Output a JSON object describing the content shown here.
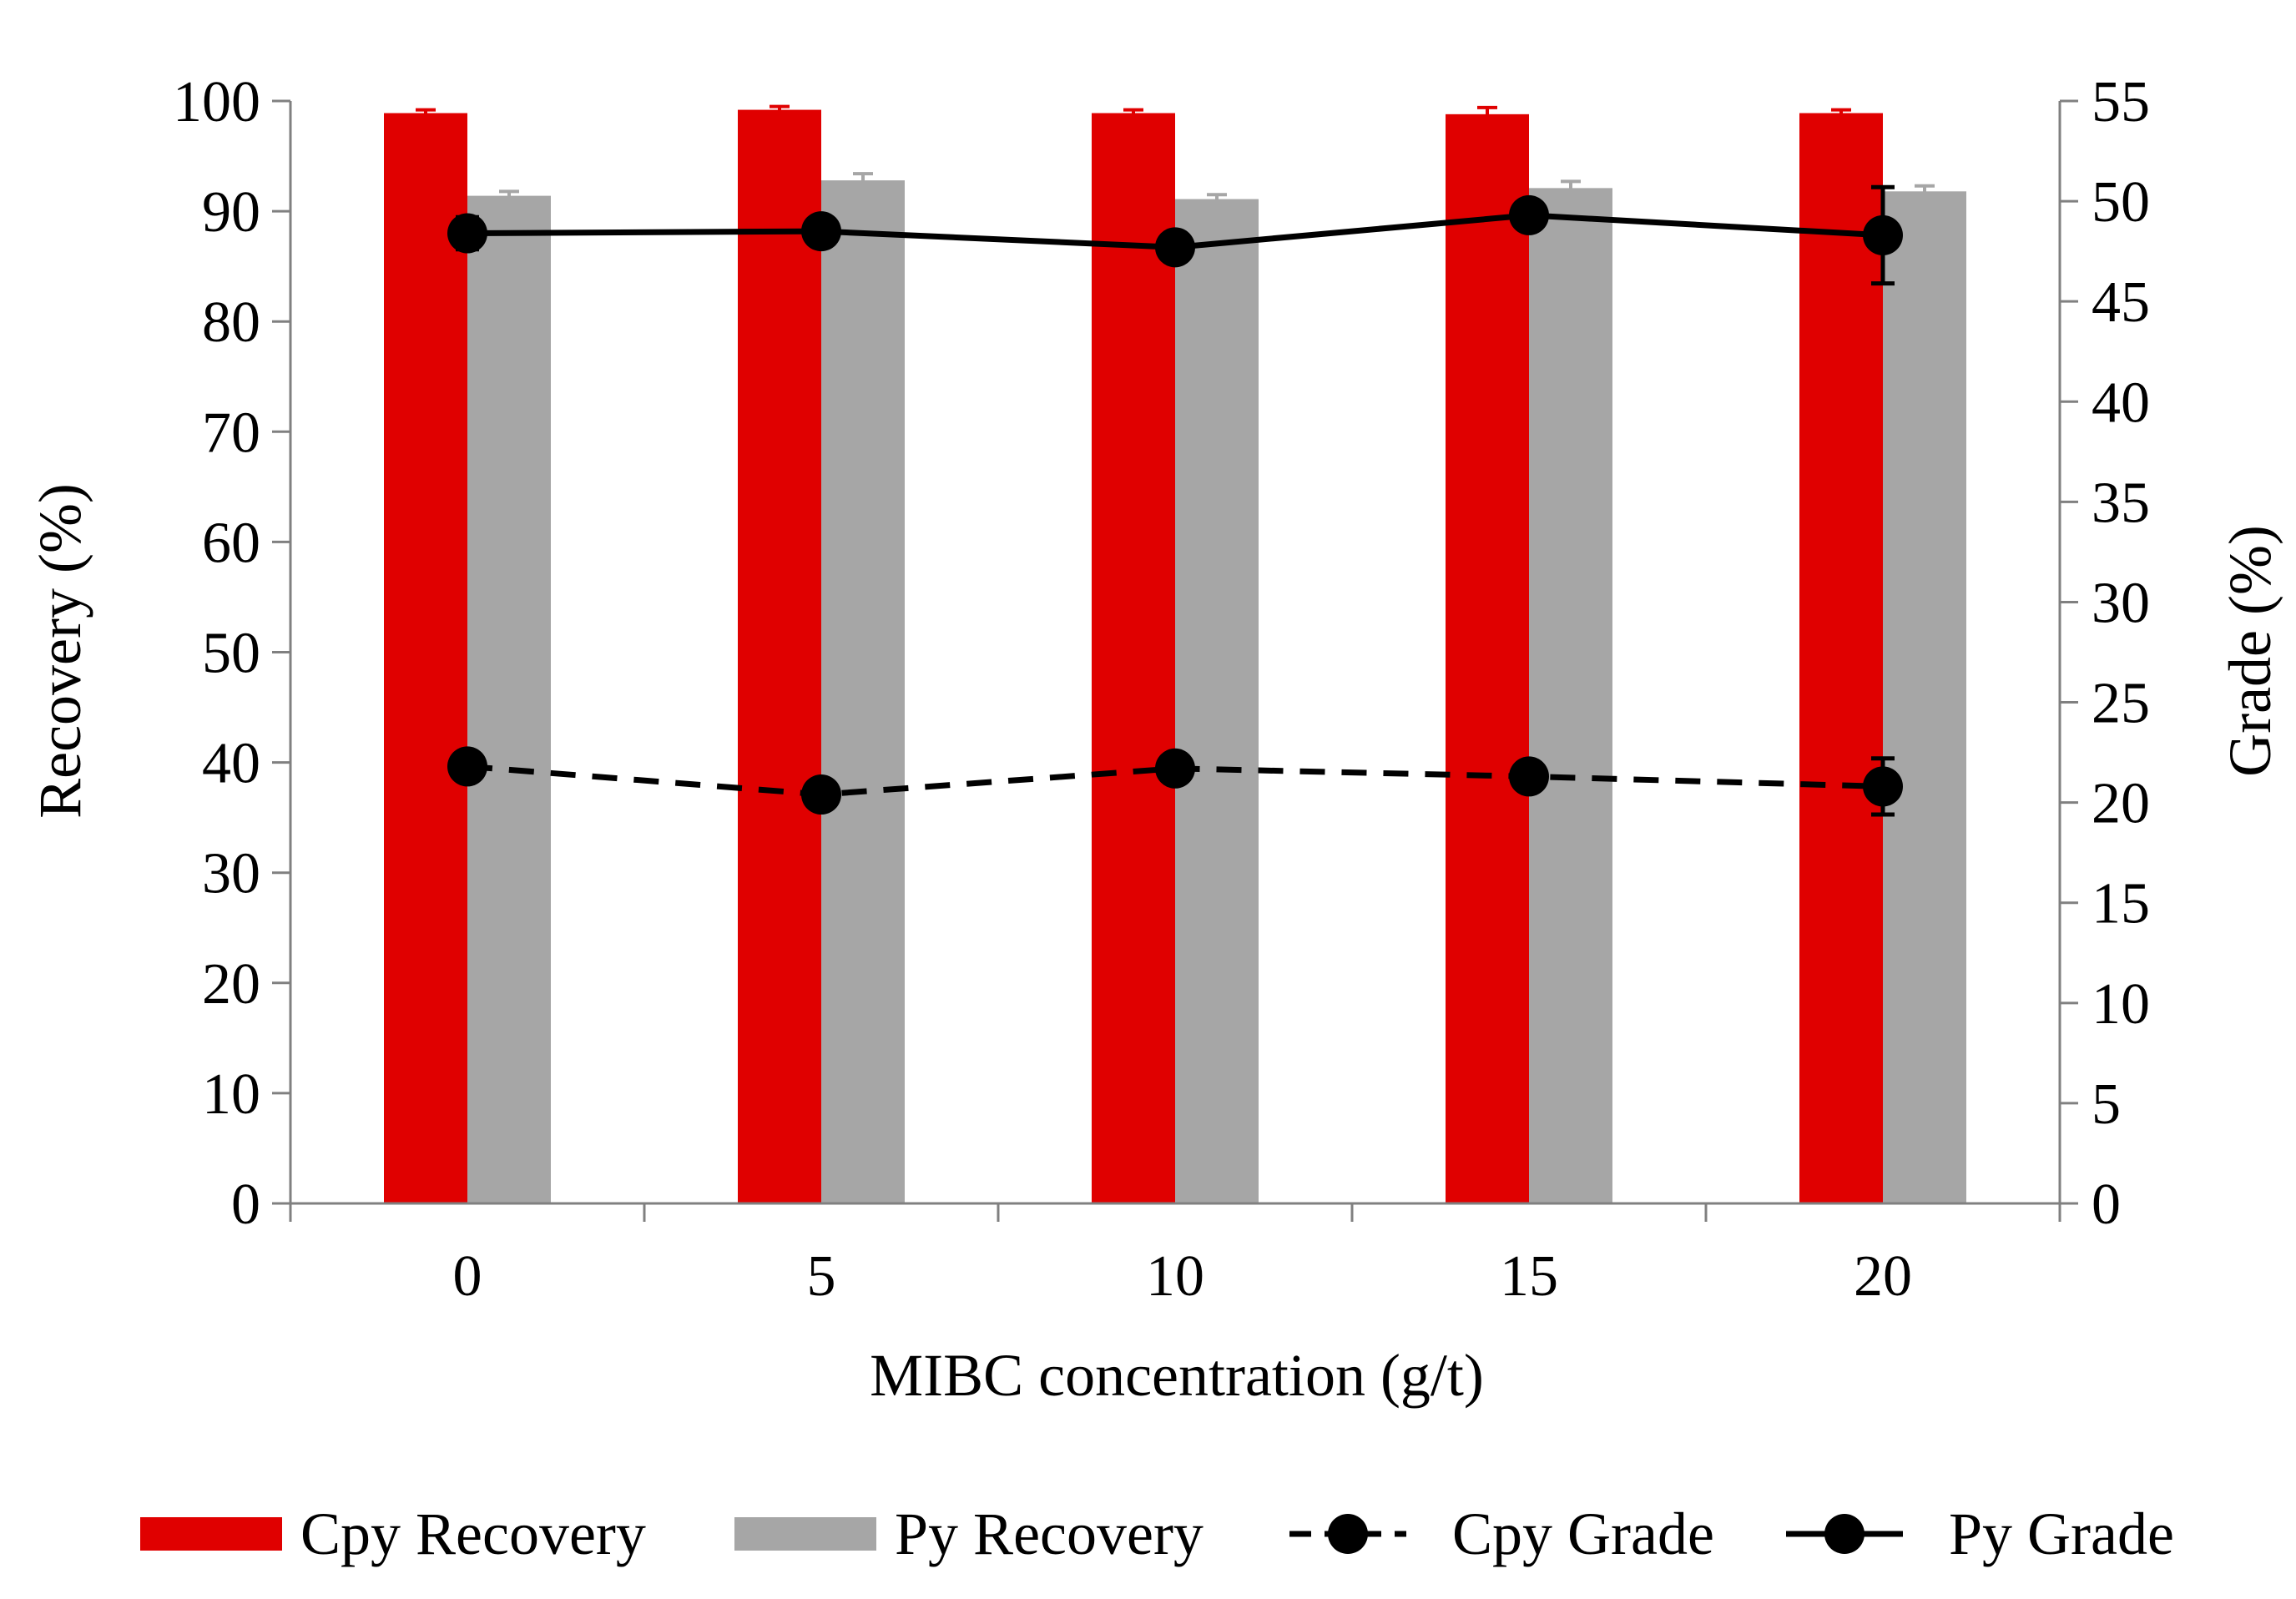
{
  "chart_data": {
    "type": "bar",
    "title": "",
    "xlabel": "MIBC concentration (g/t)",
    "ylabel": "Recovery (%)",
    "y2label": "Grade (%)",
    "categories": [
      "0",
      "5",
      "10",
      "15",
      "20"
    ],
    "ylim": [
      0,
      100
    ],
    "yticks": [
      "0",
      "10",
      "20",
      "30",
      "40",
      "50",
      "60",
      "70",
      "80",
      "90",
      "100"
    ],
    "y2lim": [
      0,
      55
    ],
    "y2ticks": [
      "0",
      "5",
      "10",
      "15",
      "20",
      "25",
      "30",
      "35",
      "40",
      "45",
      "50",
      "55"
    ],
    "grid": false,
    "legend_position": "bottom",
    "series": [
      {
        "name": "Cpy Recovery",
        "kind": "bar",
        "axis": "left",
        "color": "#e00000",
        "values": [
          98.9,
          99.2,
          98.9,
          98.8,
          98.9
        ],
        "errors": [
          0.3,
          0.3,
          0.3,
          0.6,
          0.3
        ]
      },
      {
        "name": "Py Recovery",
        "kind": "bar",
        "axis": "left",
        "color": "#a6a6a6",
        "values": [
          91.4,
          92.8,
          91.1,
          92.1,
          91.8
        ],
        "errors": [
          0.4,
          0.6,
          0.4,
          0.6,
          0.5
        ]
      },
      {
        "name": "Cpy Grade",
        "kind": "line",
        "style": "dashed",
        "axis": "right",
        "color": "#000000",
        "values": [
          21.8,
          20.4,
          21.7,
          21.3,
          20.8
        ],
        "errors": [
          0.3,
          0.3,
          0.3,
          0.3,
          1.4
        ]
      },
      {
        "name": "Py Grade",
        "kind": "line",
        "style": "solid",
        "axis": "right",
        "color": "#000000",
        "values": [
          48.4,
          48.5,
          47.7,
          49.3,
          48.3
        ],
        "errors": [
          0.8,
          0.3,
          0.3,
          0.3,
          2.4
        ]
      }
    ]
  }
}
